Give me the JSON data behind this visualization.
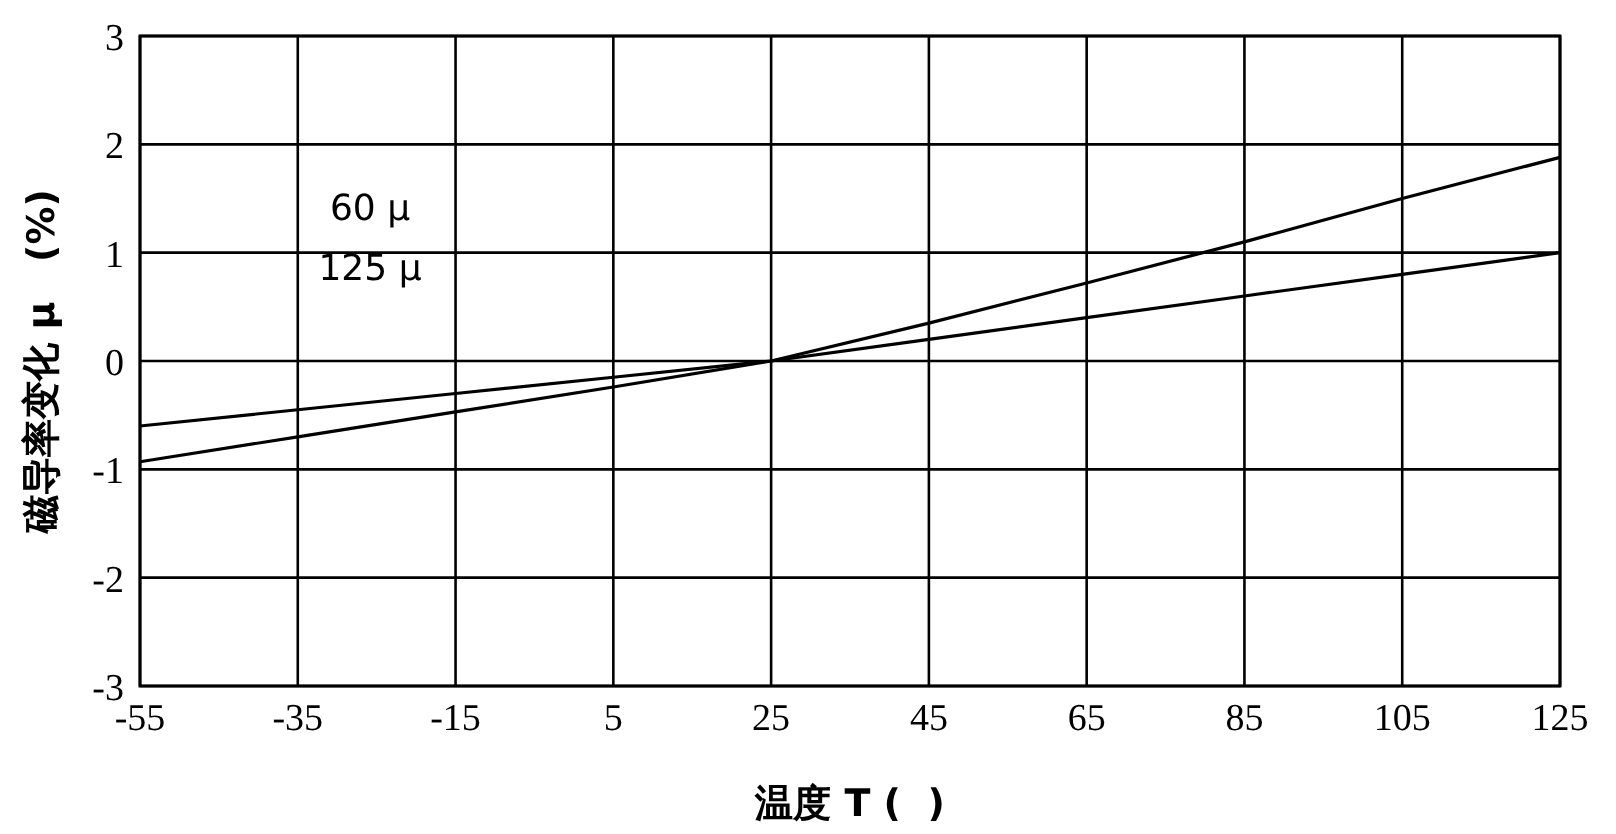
{
  "chart_data": {
    "type": "line",
    "xlabel": "温度 T (  )",
    "ylabel": "磁导率变化 μ   (%)",
    "annotations": [
      "60 μ",
      "125 μ"
    ],
    "x": [
      -55,
      -35,
      -15,
      5,
      25,
      45,
      65,
      85,
      105,
      125
    ],
    "series": [
      {
        "color": "#000000",
        "values": [
          -0.6,
          -0.45,
          -0.3,
          -0.15,
          0,
          0.2,
          0.4,
          0.6,
          0.8,
          1.0
        ]
      },
      {
        "color": "#000000",
        "values": [
          -0.93,
          -0.7,
          -0.47,
          -0.24,
          0,
          0.35,
          0.72,
          1.1,
          1.5,
          1.88
        ]
      }
    ],
    "xlim": [
      -55,
      125
    ],
    "xticks": [
      -55,
      -35,
      -15,
      5,
      25,
      45,
      65,
      85,
      105,
      125
    ],
    "ylim": [
      -3,
      3
    ],
    "yticks": [
      -3,
      -2,
      -1,
      0,
      1,
      2,
      3
    ],
    "grid": true,
    "line_style": "solid"
  }
}
